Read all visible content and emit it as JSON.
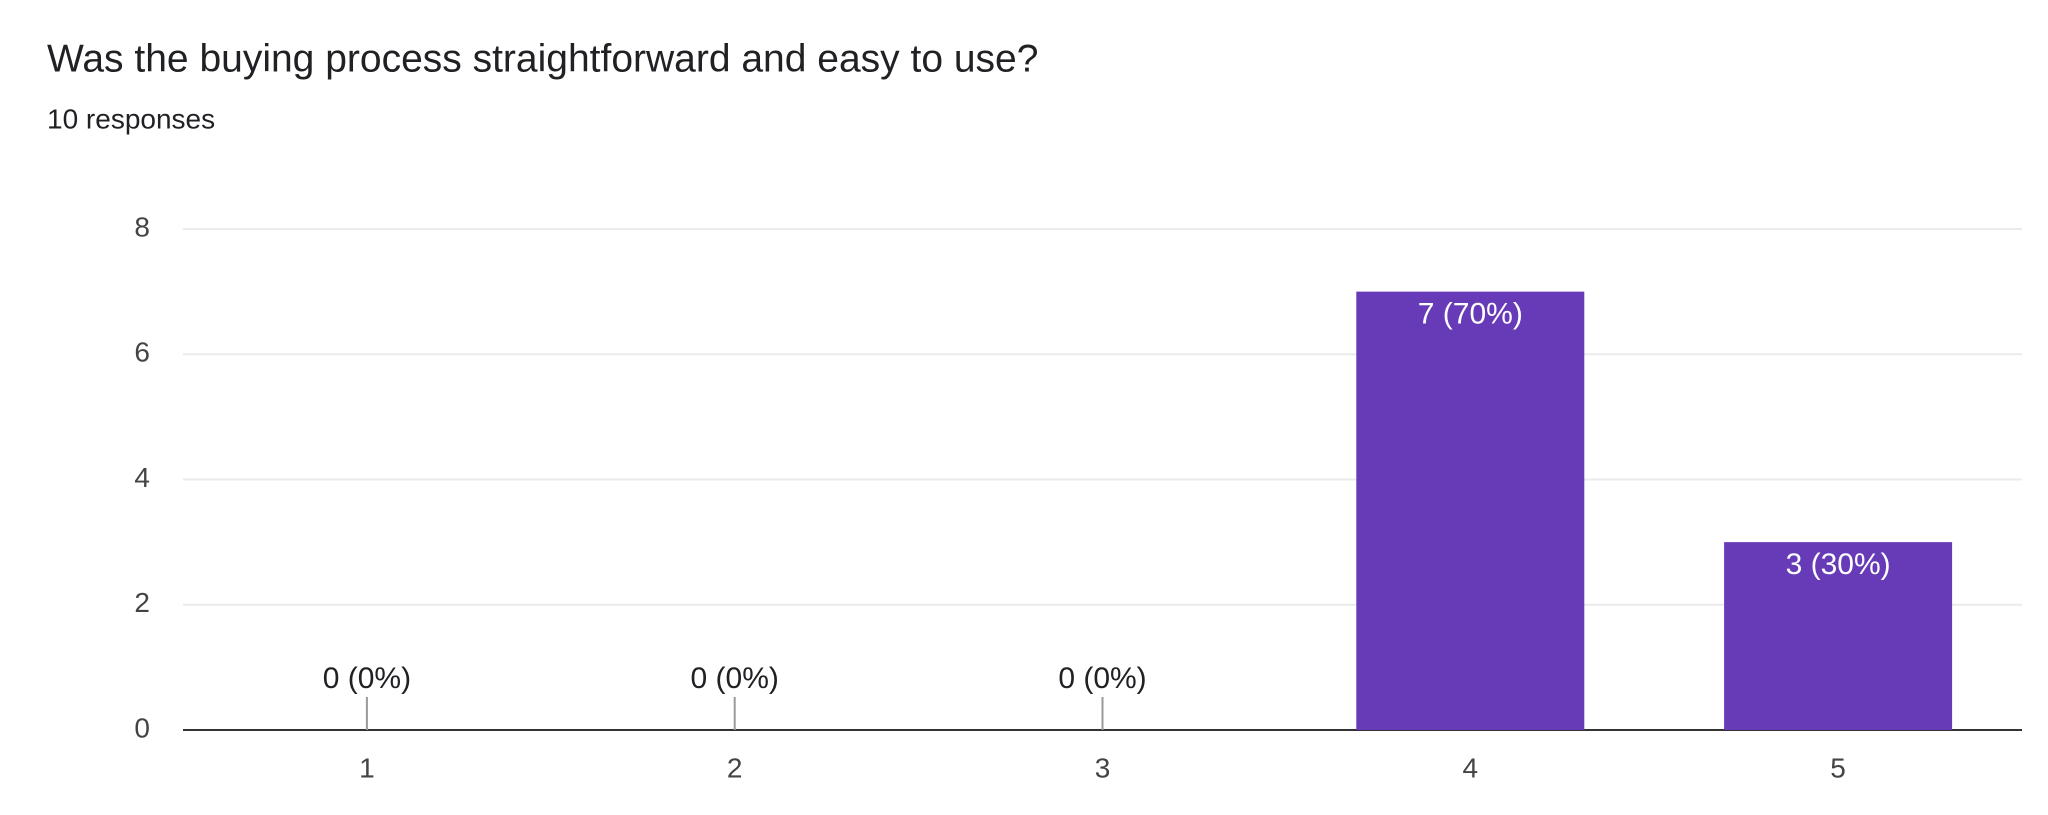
{
  "chart_data": {
    "type": "bar",
    "title": "Was the buying process straightforward and easy to use?",
    "subtitle": "10 responses",
    "categories": [
      "1",
      "2",
      "3",
      "4",
      "5"
    ],
    "values": [
      0,
      0,
      0,
      7,
      3
    ],
    "value_labels": [
      "0 (0%)",
      "0 (0%)",
      "0 (0%)",
      "7 (70%)",
      "3 (30%)"
    ],
    "color": "#673ab7",
    "ylim": [
      0,
      8
    ],
    "yticks": [
      0,
      2,
      4,
      6,
      8
    ],
    "grid": true
  }
}
